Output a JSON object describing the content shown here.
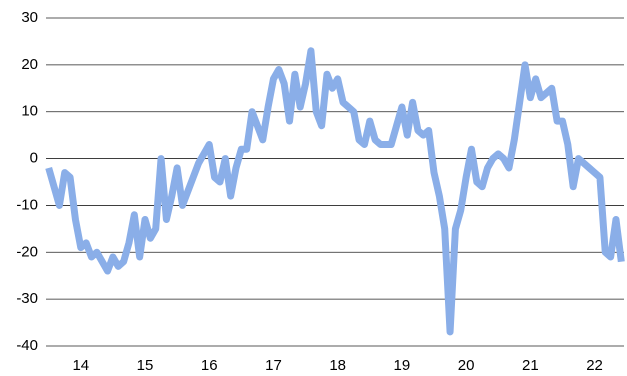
{
  "chart_data": {
    "type": "line",
    "categories": [
      null,
      null,
      null,
      null,
      null,
      null,
      "14",
      null,
      null,
      null,
      null,
      null,
      null,
      null,
      null,
      null,
      null,
      null,
      "15",
      null,
      null,
      null,
      null,
      null,
      null,
      null,
      null,
      null,
      null,
      null,
      "16",
      null,
      null,
      null,
      null,
      null,
      null,
      null,
      null,
      null,
      null,
      null,
      "17",
      null,
      null,
      null,
      null,
      null,
      null,
      null,
      null,
      null,
      null,
      null,
      "18",
      null,
      null,
      null,
      null,
      null,
      null,
      null,
      null,
      null,
      null,
      null,
      "19",
      null,
      null,
      null,
      null,
      null,
      null,
      null,
      null,
      null,
      null,
      null,
      "20",
      null,
      null,
      null,
      null,
      null,
      null,
      null,
      null,
      null,
      null,
      null,
      "21",
      null,
      null,
      null,
      null,
      null,
      null,
      null,
      null,
      null,
      null,
      null,
      "22",
      null,
      null,
      null,
      null,
      null
    ],
    "series": [
      {
        "color": "#8aaee8",
        "values": [
          -2,
          -6,
          -10,
          -3,
          -4,
          -13,
          -19,
          -18,
          -21,
          -20,
          -22,
          -24,
          -21,
          -23,
          -22,
          -18,
          -12,
          -21,
          -13,
          -17,
          -15,
          0,
          -13,
          -8,
          -2,
          -10,
          -7,
          -4,
          -1,
          1,
          3,
          -4,
          -5,
          0,
          -8,
          -2,
          2,
          2,
          10,
          7,
          4,
          11,
          17,
          19,
          16,
          8,
          18,
          11,
          16,
          23,
          10,
          7,
          18,
          15,
          17,
          12,
          11,
          10,
          4,
          3,
          8,
          4,
          3,
          3,
          3,
          7,
          11,
          5,
          12,
          6,
          5,
          6,
          -3,
          -8,
          -15,
          -37,
          -15,
          -11,
          -4,
          2,
          -5,
          -6,
          -2,
          0,
          1,
          0,
          -2,
          4,
          12,
          20,
          13,
          17,
          13,
          14,
          15,
          8,
          8,
          3,
          -6,
          0,
          -1,
          -2,
          -3,
          -4,
          -20,
          -21,
          -13,
          -22
        ]
      }
    ],
    "ylim": [
      -40,
      30
    ],
    "yticks": [
      -40,
      -30,
      -20,
      -10,
      0,
      10,
      20,
      30
    ],
    "grid": true
  }
}
